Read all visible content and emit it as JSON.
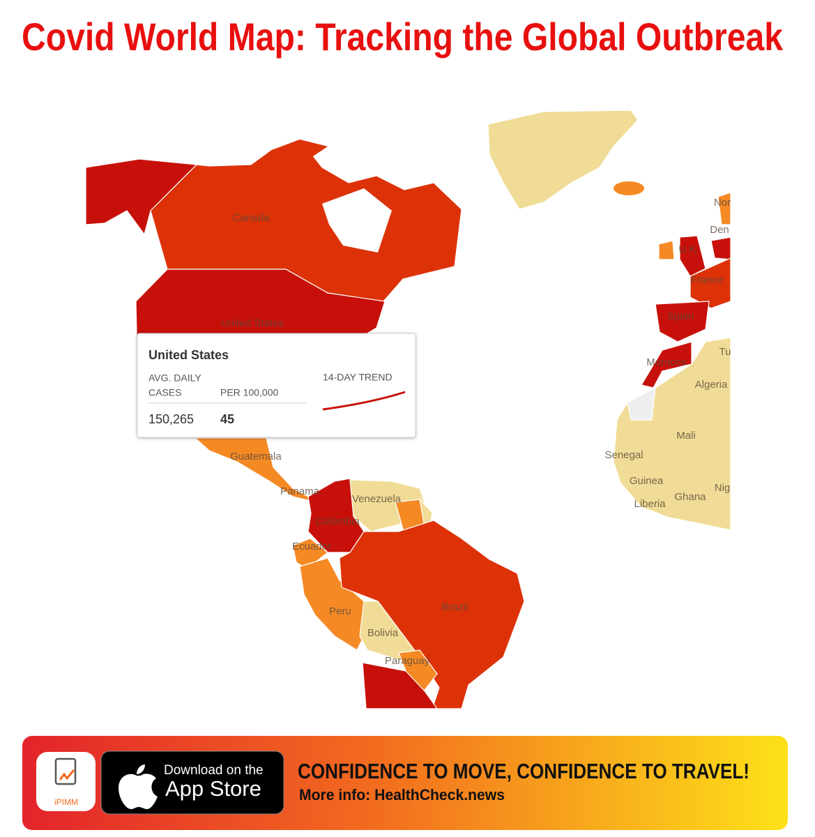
{
  "header": {
    "title": "Covid World Map: Tracking the Global Outbreak"
  },
  "map": {
    "labels": [
      "Canada",
      "United States",
      "Guatemala",
      "Panama",
      "Venezuela",
      "Colombia",
      "Ecuador",
      "Peru",
      "Bolivia",
      "Brazil",
      "Paraguay",
      "Nor",
      "Den",
      "U.K.",
      "France",
      "Spain",
      "Morocco",
      "Tu",
      "Algeria",
      "Mali",
      "Senegal",
      "Guinea",
      "Liberia",
      "Ghana",
      "Nig"
    ]
  },
  "tooltip": {
    "country": "United States",
    "columns": [
      {
        "label_lines": [
          "AVG. DAILY",
          "CASES"
        ],
        "value": "150,265"
      },
      {
        "label_lines": [
          "PER 100,000"
        ],
        "value": "45"
      }
    ],
    "trend_label": "14-DAY TREND"
  },
  "banner": {
    "app_name": "iPIMM",
    "store_button": {
      "line1": "Download on the",
      "line2": "App Store"
    },
    "headline": "CONFIDENCE TO MOVE, CONFIDENCE TO TRAVEL!",
    "subline": "More info: HealthCheck.news"
  }
}
